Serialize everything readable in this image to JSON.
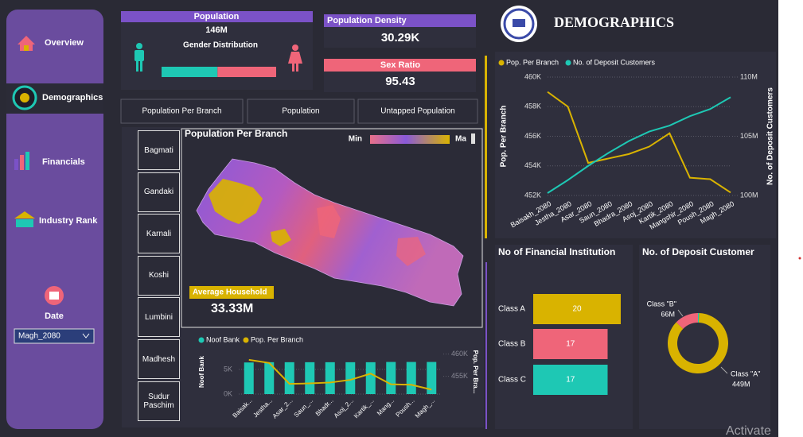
{
  "nav": {
    "items": [
      "Overview",
      "Demographics",
      "Financials",
      "Industry Rank"
    ],
    "date_label": "Date",
    "date_value": "Magh_2080"
  },
  "cards": {
    "population": {
      "title": "Population",
      "value": "146M",
      "subtitle": "Gender Distribution",
      "gender_shares": [
        48.8,
        51.2
      ],
      "gender_colors": [
        "#1ec8b4",
        "#ef6579"
      ]
    },
    "density": {
      "title": "Population Density",
      "value": "30.29K"
    },
    "sex_ratio": {
      "title": "Sex Ratio",
      "value": "95.43"
    }
  },
  "tabs": [
    "Population Per Branch",
    "Population",
    "Untapped Population"
  ],
  "provinces": [
    "Bagmati",
    "Gandaki",
    "Karnali",
    "Koshi",
    "Lumbini",
    "Madhesh",
    "Sudur Paschim"
  ],
  "map": {
    "title": "Population Per Branch",
    "legend_min": "Min",
    "legend_max": "Ma",
    "card_title": "Average Household",
    "card_value": "33.33M"
  },
  "header": {
    "title": "DEMOGRAPHICS"
  },
  "watermark": "Activate",
  "chart_data": [
    {
      "type": "line",
      "categories": [
        "Baisakh_2080",
        "Jestha_2080",
        "Asar_2080",
        "Saun_2080",
        "Bhadra_2080",
        "Asoj_2080",
        "Kartik_2080",
        "Mangshir_2080",
        "Poush_2080",
        "Magh_2080"
      ],
      "series": [
        {
          "name": "Pop. Per Branch",
          "color": "#d9b300",
          "values": [
            459000,
            458000,
            454200,
            454500,
            454800,
            455300,
            456200,
            453200,
            453100,
            452200
          ]
        },
        {
          "name": "No. of Deposit Customers",
          "color": "#1ec8b4",
          "axis": "y2",
          "values": [
            100200000,
            101300000,
            102500000,
            103600000,
            104600000,
            105400000,
            105900000,
            106700000,
            107300000,
            108300000
          ]
        }
      ],
      "ylabel": "Pop. Per Branch",
      "y2label": "No. of Deposit Customers",
      "ylim": [
        452000,
        460000
      ],
      "yticks": [
        {
          "value": 452000,
          "label": "452K"
        },
        {
          "value": 454000,
          "label": "454K"
        },
        {
          "value": 456000,
          "label": "456K"
        },
        {
          "value": 458000,
          "label": "458K"
        },
        {
          "value": 460000,
          "label": "460K"
        }
      ],
      "y2lim": [
        100000000,
        110000000
      ],
      "y2ticks": [
        {
          "value": 100000000,
          "label": "100M"
        },
        {
          "value": 105000000,
          "label": "105M"
        },
        {
          "value": 110000000,
          "label": "110M"
        }
      ],
      "grid": true,
      "legend": "top-left"
    },
    {
      "type": "combo",
      "categories": [
        "Baisak...",
        "Jestha...",
        "Asar_2...",
        "Saun_...",
        "Bhadr...",
        "Asoj_2...",
        "Kartik_...",
        "Mang...",
        "Poush...",
        "Magh_..."
      ],
      "series": [
        {
          "name": "Noof Bank",
          "color": "#1ec8b4",
          "values": [
            6400,
            6450,
            6450,
            6450,
            6450,
            6450,
            6450,
            6500,
            6500,
            6500
          ]
        },
        {
          "name": "Pop. Per Branch",
          "color": "#d9b300",
          "axis": "y2",
          "values": [
            458700,
            458000,
            453300,
            453400,
            453600,
            454200,
            455600,
            453200,
            453100,
            452000
          ]
        }
      ],
      "ylabel": "Noof Bank",
      "y2label": "Pop. Per Bra...",
      "ylim": [
        0,
        9000
      ],
      "yticks": [
        {
          "value": 0,
          "label": "0K"
        },
        {
          "value": 5000,
          "label": "5K"
        }
      ],
      "y2lim": [
        451000,
        461000
      ],
      "y2ticks": [
        {
          "value": 455000,
          "label": "455K"
        },
        {
          "value": 460000,
          "label": "460K"
        }
      ],
      "grid": true,
      "legend": "top-left"
    },
    {
      "type": "hbar",
      "title": "No of Financial Institution",
      "categories": [
        "Class A",
        "Class B",
        "Class C"
      ],
      "values": [
        20,
        17,
        17
      ],
      "colors": [
        "#d9b300",
        "#ef6579",
        "#1ec8b4"
      ]
    },
    {
      "type": "donut",
      "title": "No. of Deposit Customer",
      "categories": [
        "Class \"A\"",
        "Class \"B\"",
        null
      ],
      "values": [
        449,
        66,
        3
      ],
      "value_labels": [
        "449M",
        "66M",
        null
      ],
      "colors": [
        "#d9b300",
        "#ef6579",
        "#1ec8b4"
      ]
    }
  ]
}
